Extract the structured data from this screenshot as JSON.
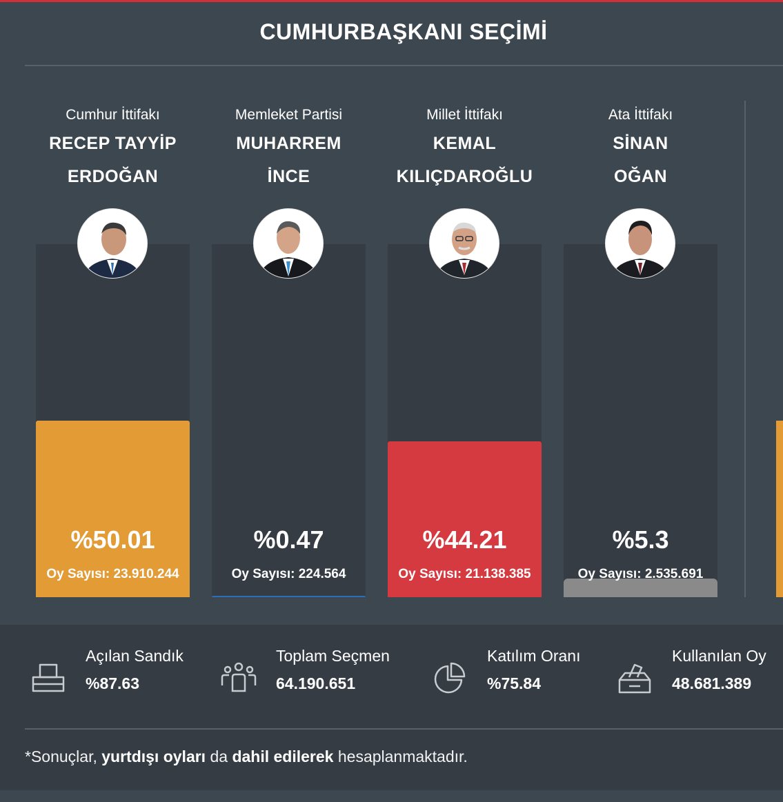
{
  "title": "CUMHURBAŞKANI SEÇİMİ",
  "chart_data": {
    "type": "bar",
    "title": "CUMHURBAŞKANI SEÇİMİ",
    "ylim": [
      0,
      100
    ],
    "categories": [
      "RECEP TAYYİP ERDOĞAN",
      "MUHARREM İNCE",
      "KEMAL KILIÇDAROĞLU",
      "SİNAN OĞAN"
    ],
    "values": [
      50.01,
      0.47,
      44.21,
      5.3
    ],
    "candidates": [
      {
        "party": "Cumhur İttifakı",
        "name_line1": "RECEP TAYYİP",
        "name_line2": "ERDOĞAN",
        "percent": 50.01,
        "percent_label": "%50.01",
        "votes_label": "Oy Sayısı: 23.910.244",
        "color": "#e39b36"
      },
      {
        "party": "Memleket Partisi",
        "name_line1": "MUHARREM",
        "name_line2": "İNCE",
        "percent": 0.47,
        "percent_label": "%0.47",
        "votes_label": "Oy Sayısı: 224.564",
        "color": "#2a6fb8"
      },
      {
        "party": "Millet İttifakı",
        "name_line1": "KEMAL",
        "name_line2": "KILIÇDAROĞLU",
        "percent": 44.21,
        "percent_label": "%44.21",
        "votes_label": "Oy Sayısı: 21.138.385",
        "color": "#d43a40"
      },
      {
        "party": "Ata İttifakı",
        "name_line1": "SİNAN",
        "name_line2": "OĞAN",
        "percent": 5.3,
        "percent_label": "%5.3",
        "votes_label": "Oy Sayısı: 2.535.691",
        "color": "#8a8a8a"
      }
    ]
  },
  "stats": [
    {
      "icon": "ballot-printer-icon",
      "label": "Açılan Sandık",
      "value": "%87.63"
    },
    {
      "icon": "people-group-icon",
      "label": "Toplam Seçmen",
      "value": "64.190.651"
    },
    {
      "icon": "pie-chart-icon",
      "label": "Katılım Oranı",
      "value": "%75.84"
    },
    {
      "icon": "ballot-box-icon",
      "label": "Kullanılan Oy",
      "value": "48.681.389"
    }
  ],
  "note": {
    "part1": "*Sonuçlar, ",
    "bold1": "yurtdışı oyları",
    "part2": " da ",
    "bold2": "dahil edilerek",
    "part3": " hesaplanmaktadır."
  },
  "colors": {
    "background": "#3d4750",
    "track": "#353c44",
    "accent": "#d4303a"
  }
}
